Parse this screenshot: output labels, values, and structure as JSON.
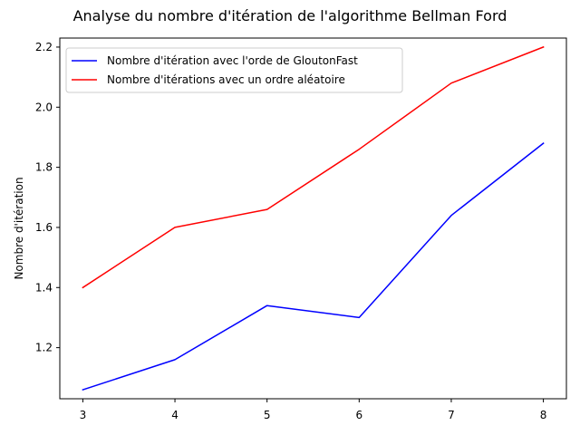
{
  "chart_data": {
    "type": "line",
    "title": "Analyse du nombre d'itération de l'algorithme Bellman Ford",
    "xlabel": "",
    "ylabel": "Nombre d'itération",
    "x": [
      3,
      4,
      5,
      6,
      7,
      8
    ],
    "xticks": [
      "3",
      "4",
      "5",
      "6",
      "7",
      "8"
    ],
    "yticks": [
      "1.2",
      "1.4",
      "1.6",
      "1.8",
      "2.0",
      "2.2"
    ],
    "xlim": [
      2.75,
      8.25
    ],
    "ylim": [
      1.03,
      2.23
    ],
    "grid": false,
    "legend": "top-left",
    "series": [
      {
        "name": "Nombre d'itération avec l'orde de GloutonFast",
        "color": "#0000ff",
        "values": [
          1.06,
          1.16,
          1.34,
          1.3,
          1.64,
          1.88
        ]
      },
      {
        "name": "Nombre d'itérations avec un ordre aléatoire",
        "color": "#ff0000",
        "values": [
          1.4,
          1.6,
          1.66,
          1.86,
          2.08,
          2.2
        ]
      }
    ]
  }
}
